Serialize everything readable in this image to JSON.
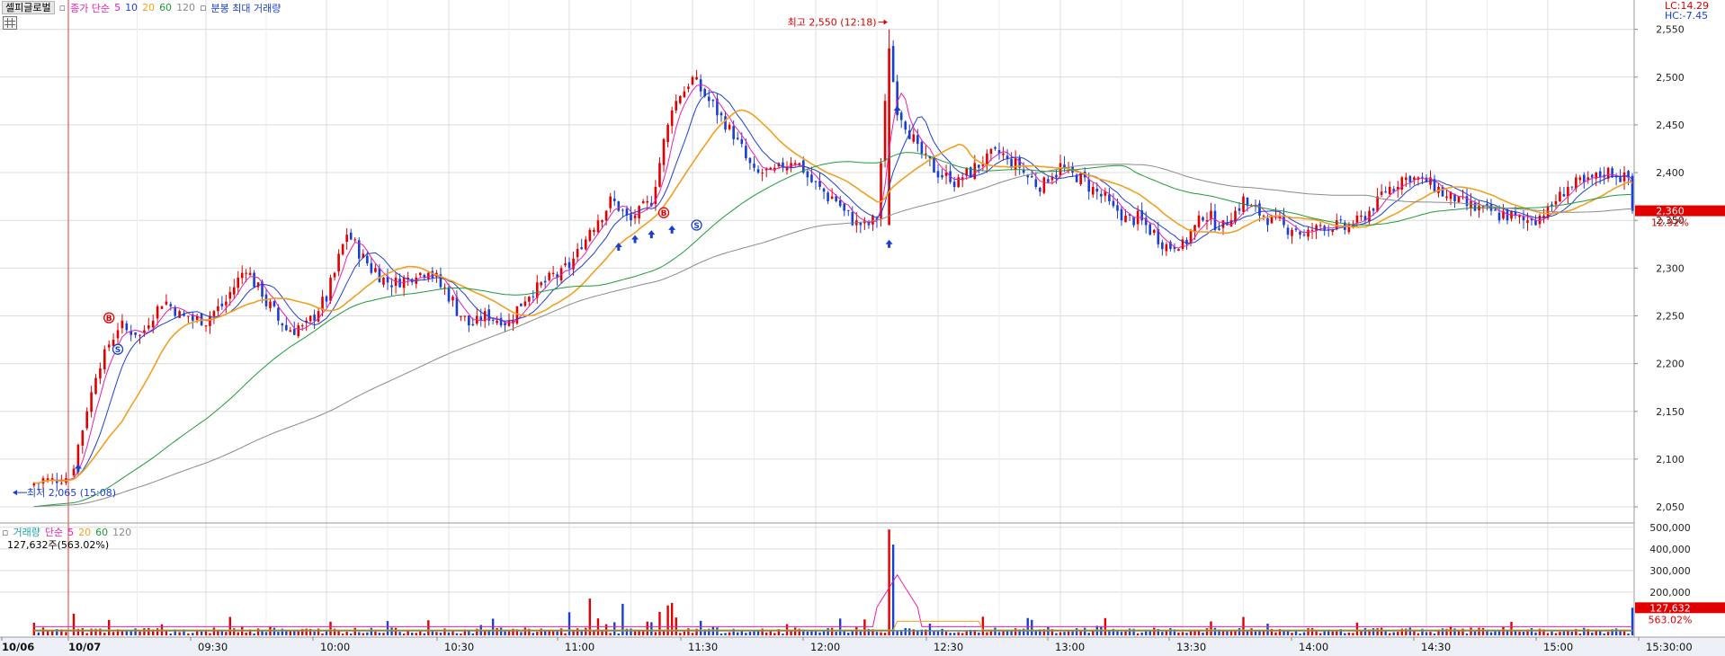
{
  "header": {
    "stock_name": "셀피글로벌",
    "ma_legend_prefix": "종가 단순",
    "ma_periods": [
      "5",
      "10",
      "20",
      "60",
      "120"
    ],
    "ma_colors": [
      "#e81fb0",
      "#1f3fd0",
      "#f0a020",
      "#1f9a3a",
      "#8a8a8a"
    ],
    "extra_label": "분봉 최대 거래량"
  },
  "right_info": {
    "lc": "LC:14.29",
    "hc": "HC:-7.45"
  },
  "price_axis": {
    "ticks": [
      "2,550",
      "2,500",
      "2,450",
      "2,400",
      "2,350",
      "2,300",
      "2,250",
      "2,200",
      "2,150",
      "2,100",
      "2,050"
    ],
    "current_price": "2,360",
    "current_pct": "12.92%"
  },
  "annotations": {
    "high": "최고 2,550 (12:18)",
    "low": "최저 2,065 (15:08)"
  },
  "volume": {
    "legend_label": "거래량",
    "legend_prefix": "단순",
    "ma_periods": [
      "5",
      "20",
      "60",
      "120"
    ],
    "info": "127,632주(563.02%)",
    "axis_ticks": [
      "500,000",
      "400,000",
      "300,000",
      "200,000"
    ],
    "current": "127,632",
    "current_pct": "563.02%"
  },
  "time_axis": {
    "labels": [
      "10/06",
      "10/07",
      "09:30",
      "10:00",
      "10:30",
      "11:00",
      "11:30",
      "12:00",
      "12:30",
      "13:00",
      "13:30",
      "14:00",
      "14:30",
      "15:00",
      "15:30:00"
    ]
  },
  "colors": {
    "up": "#e00000",
    "down": "#1a3fd0",
    "grid": "#dcdcdc",
    "axis_bg": "#eef0f8"
  },
  "chart_data": {
    "type": "candlestick",
    "title": "셀피글로벌",
    "y_range": [
      2035,
      2560
    ],
    "volume_range": [
      0,
      520000
    ],
    "high": {
      "value": 2550,
      "time": "12:18"
    },
    "low": {
      "value": 2065,
      "time": "15:08"
    },
    "last_price": 2360,
    "anchors": [
      {
        "t": "10/06 15:00",
        "p": 2075
      },
      {
        "t": "10/06 15:30",
        "p": 2080
      },
      {
        "t": "10/07 09:00",
        "p": 2095
      },
      {
        "t": "09:05",
        "p": 2190
      },
      {
        "t": "09:10",
        "p": 2240
      },
      {
        "t": "09:15",
        "p": 2230
      },
      {
        "t": "09:20",
        "p": 2265
      },
      {
        "t": "09:25",
        "p": 2250
      },
      {
        "t": "09:30",
        "p": 2245
      },
      {
        "t": "09:35",
        "p": 2265
      },
      {
        "t": "09:40",
        "p": 2300
      },
      {
        "t": "09:45",
        "p": 2265
      },
      {
        "t": "09:50",
        "p": 2235
      },
      {
        "t": "09:55",
        "p": 2240
      },
      {
        "t": "10:00",
        "p": 2270
      },
      {
        "t": "10:05",
        "p": 2335
      },
      {
        "t": "10:10",
        "p": 2305
      },
      {
        "t": "10:15",
        "p": 2285
      },
      {
        "t": "10:20",
        "p": 2290
      },
      {
        "t": "10:25",
        "p": 2300
      },
      {
        "t": "10:30",
        "p": 2270
      },
      {
        "t": "10:35",
        "p": 2240
      },
      {
        "t": "10:40",
        "p": 2250
      },
      {
        "t": "10:45",
        "p": 2245
      },
      {
        "t": "10:50",
        "p": 2275
      },
      {
        "t": "10:55",
        "p": 2290
      },
      {
        "t": "11:00",
        "p": 2300
      },
      {
        "t": "11:05",
        "p": 2340
      },
      {
        "t": "11:10",
        "p": 2370
      },
      {
        "t": "11:15",
        "p": 2350
      },
      {
        "t": "11:20",
        "p": 2370
      },
      {
        "t": "11:25",
        "p": 2470
      },
      {
        "t": "11:30",
        "p": 2500
      },
      {
        "t": "11:35",
        "p": 2470
      },
      {
        "t": "11:40",
        "p": 2440
      },
      {
        "t": "11:45",
        "p": 2400
      },
      {
        "t": "11:50",
        "p": 2400
      },
      {
        "t": "11:55",
        "p": 2415
      },
      {
        "t": "12:00",
        "p": 2385
      },
      {
        "t": "12:05",
        "p": 2370
      },
      {
        "t": "12:10",
        "p": 2345
      },
      {
        "t": "12:15",
        "p": 2350
      },
      {
        "t": "12:18",
        "p": 2530
      },
      {
        "t": "12:20",
        "p": 2465
      },
      {
        "t": "12:25",
        "p": 2425
      },
      {
        "t": "12:30",
        "p": 2400
      },
      {
        "t": "12:35",
        "p": 2390
      },
      {
        "t": "12:40",
        "p": 2410
      },
      {
        "t": "12:45",
        "p": 2420
      },
      {
        "t": "12:50",
        "p": 2405
      },
      {
        "t": "12:55",
        "p": 2385
      },
      {
        "t": "13:00",
        "p": 2405
      },
      {
        "t": "13:05",
        "p": 2395
      },
      {
        "t": "13:10",
        "p": 2375
      },
      {
        "t": "13:15",
        "p": 2355
      },
      {
        "t": "13:20",
        "p": 2350
      },
      {
        "t": "13:25",
        "p": 2325
      },
      {
        "t": "13:30",
        "p": 2325
      },
      {
        "t": "13:35",
        "p": 2355
      },
      {
        "t": "13:40",
        "p": 2345
      },
      {
        "t": "13:45",
        "p": 2370
      },
      {
        "t": "13:50",
        "p": 2355
      },
      {
        "t": "13:55",
        "p": 2345
      },
      {
        "t": "14:00",
        "p": 2335
      },
      {
        "t": "14:05",
        "p": 2345
      },
      {
        "t": "14:10",
        "p": 2340
      },
      {
        "t": "14:15",
        "p": 2355
      },
      {
        "t": "14:20",
        "p": 2380
      },
      {
        "t": "14:25",
        "p": 2395
      },
      {
        "t": "14:30",
        "p": 2390
      },
      {
        "t": "14:35",
        "p": 2375
      },
      {
        "t": "14:40",
        "p": 2365
      },
      {
        "t": "14:45",
        "p": 2360
      },
      {
        "t": "14:50",
        "p": 2355
      },
      {
        "t": "14:55",
        "p": 2350
      },
      {
        "t": "15:00",
        "p": 2360
      },
      {
        "t": "15:05",
        "p": 2385
      },
      {
        "t": "15:10",
        "p": 2390
      },
      {
        "t": "15:15",
        "p": 2400
      },
      {
        "t": "15:20",
        "p": 2395
      },
      {
        "t": "15:21",
        "p": 2360
      }
    ],
    "volume_spikes": [
      {
        "t": "10/07 09:00",
        "v": 100000
      },
      {
        "t": "11:05",
        "v": 170000
      },
      {
        "t": "11:25",
        "v": 150000
      },
      {
        "t": "12:18",
        "v": 490000
      },
      {
        "t": "12:19",
        "v": 420000
      },
      {
        "t": "15:21",
        "v": 127632
      }
    ]
  }
}
